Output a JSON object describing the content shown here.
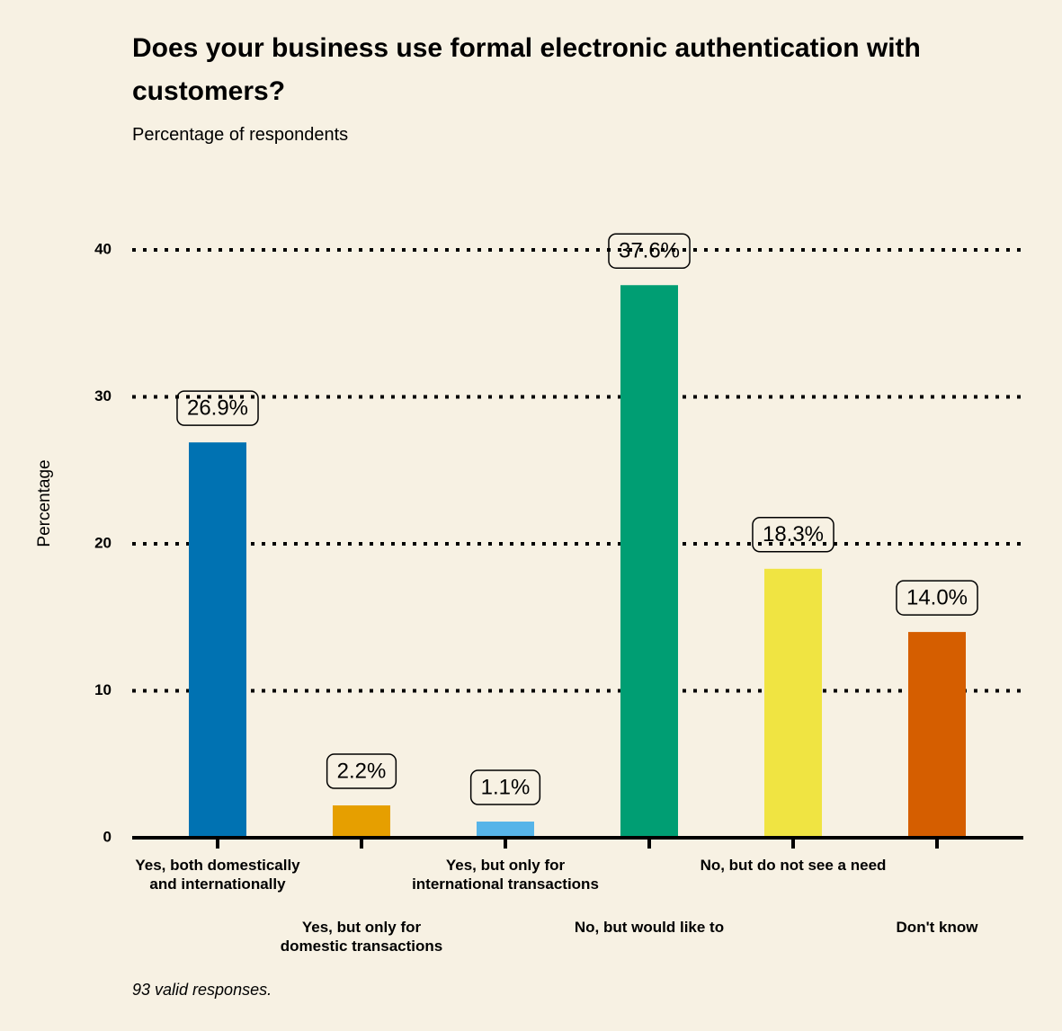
{
  "chart_data": {
    "type": "bar",
    "title": "Does your business use formal electronic authentication with customers?",
    "subtitle": "Percentage of respondents",
    "y_label": "Percentage",
    "footnote": "93 valid responses.",
    "categories": [
      "Yes, both domestically and internationally",
      "Yes, but only for domestic transactions",
      "Yes, but only for international transactions",
      "No, but would like to",
      "No, but do not see a need",
      "Don't know"
    ],
    "values": [
      26.9,
      2.2,
      1.1,
      37.6,
      18.3,
      14.0
    ],
    "value_labels": [
      "26.9%",
      "2.2%",
      "1.1%",
      "37.6%",
      "18.3%",
      "14.0%"
    ],
    "colors": [
      "#0072b2",
      "#e69f00",
      "#56b4e9",
      "#009e73",
      "#f0e442",
      "#d55e00"
    ],
    "ylim": [
      0,
      40
    ],
    "yticks": [
      0,
      10,
      20,
      30,
      40
    ],
    "grid": true
  }
}
